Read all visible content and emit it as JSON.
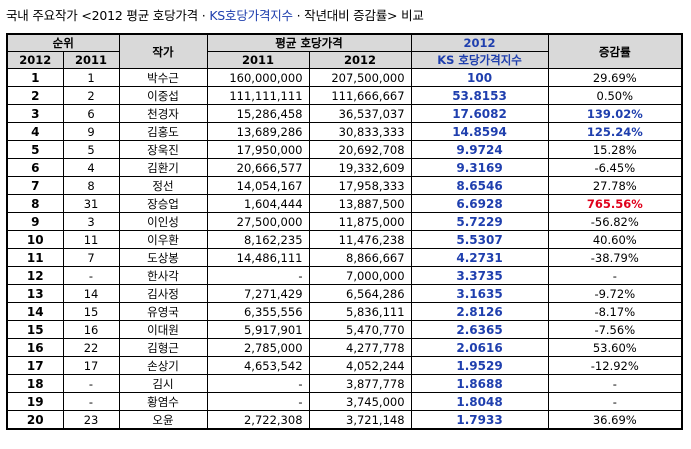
{
  "title": {
    "prefix": "국내 주요작가 <2012 평균 호당가격 · ",
    "accent": "KS호당가격지수",
    "suffix": " · 작년대비 증감률> 비교"
  },
  "headers": {
    "rank": "순위",
    "artist": "작가",
    "avg_price": "평균 호당가격",
    "ks_year": "2012",
    "ks_index": "KS 호당가격지수",
    "change": "증감률",
    "y2012": "2012",
    "y2011": "2011",
    "p2011": "2011",
    "p2012": "2012"
  },
  "rows": [
    {
      "r2012": "1",
      "r2011": "1",
      "artist": "박수근",
      "p2011": "160,000,000",
      "p2012": "207,500,000",
      "ks": "100",
      "chg": "29.69%",
      "style": ""
    },
    {
      "r2012": "2",
      "r2011": "2",
      "artist": "이중섭",
      "p2011": "111,111,111",
      "p2012": "111,666,667",
      "ks": "53.8153",
      "chg": "0.50%",
      "style": ""
    },
    {
      "r2012": "3",
      "r2011": "6",
      "artist": "천경자",
      "p2011": "15,286,458",
      "p2012": "36,537,037",
      "ks": "17.6082",
      "chg": "139.02%",
      "style": "bold"
    },
    {
      "r2012": "4",
      "r2011": "9",
      "artist": "김홍도",
      "p2011": "13,689,286",
      "p2012": "30,833,333",
      "ks": "14.8594",
      "chg": "125.24%",
      "style": "bold"
    },
    {
      "r2012": "5",
      "r2011": "5",
      "artist": "장욱진",
      "p2011": "17,950,000",
      "p2012": "20,692,708",
      "ks": "9.9724",
      "chg": "15.28%",
      "style": ""
    },
    {
      "r2012": "6",
      "r2011": "4",
      "artist": "김환기",
      "p2011": "20,666,577",
      "p2012": "19,332,609",
      "ks": "9.3169",
      "chg": "-6.45%",
      "style": ""
    },
    {
      "r2012": "7",
      "r2011": "8",
      "artist": "정선",
      "p2011": "14,054,167",
      "p2012": "17,958,333",
      "ks": "8.6546",
      "chg": "27.78%",
      "style": ""
    },
    {
      "r2012": "8",
      "r2011": "31",
      "artist": "장승업",
      "p2011": "1,604,444",
      "p2012": "13,887,500",
      "ks": "6.6928",
      "chg": "765.56%",
      "style": "red"
    },
    {
      "r2012": "9",
      "r2011": "3",
      "artist": "이인성",
      "p2011": "27,500,000",
      "p2012": "11,875,000",
      "ks": "5.7229",
      "chg": "-56.82%",
      "style": ""
    },
    {
      "r2012": "10",
      "r2011": "11",
      "artist": "이우환",
      "p2011": "8,162,235",
      "p2012": "11,476,238",
      "ks": "5.5307",
      "chg": "40.60%",
      "style": ""
    },
    {
      "r2012": "11",
      "r2011": "7",
      "artist": "도상봉",
      "p2011": "14,486,111",
      "p2012": "8,866,667",
      "ks": "4.2731",
      "chg": "-38.79%",
      "style": ""
    },
    {
      "r2012": "12",
      "r2011": "-",
      "artist": "한사각",
      "p2011": "-",
      "p2012": "7,000,000",
      "ks": "3.3735",
      "chg": "-",
      "style": ""
    },
    {
      "r2012": "13",
      "r2011": "14",
      "artist": "김사정",
      "p2011": "7,271,429",
      "p2012": "6,564,286",
      "ks": "3.1635",
      "chg": "-9.72%",
      "style": ""
    },
    {
      "r2012": "14",
      "r2011": "15",
      "artist": "유영국",
      "p2011": "6,355,556",
      "p2012": "5,836,111",
      "ks": "2.8126",
      "chg": "-8.17%",
      "style": ""
    },
    {
      "r2012": "15",
      "r2011": "16",
      "artist": "이대원",
      "p2011": "5,917,901",
      "p2012": "5,470,770",
      "ks": "2.6365",
      "chg": "-7.56%",
      "style": ""
    },
    {
      "r2012": "16",
      "r2011": "22",
      "artist": "김형근",
      "p2011": "2,785,000",
      "p2012": "4,277,778",
      "ks": "2.0616",
      "chg": "53.60%",
      "style": ""
    },
    {
      "r2012": "17",
      "r2011": "17",
      "artist": "손상기",
      "p2011": "4,653,542",
      "p2012": "4,052,244",
      "ks": "1.9529",
      "chg": "-12.92%",
      "style": ""
    },
    {
      "r2012": "18",
      "r2011": "-",
      "artist": "김시",
      "p2011": "-",
      "p2012": "3,877,778",
      "ks": "1.8688",
      "chg": "-",
      "style": ""
    },
    {
      "r2012": "19",
      "r2011": "-",
      "artist": "황염수",
      "p2011": "-",
      "p2012": "3,745,000",
      "ks": "1.8048",
      "chg": "-",
      "style": ""
    },
    {
      "r2012": "20",
      "r2011": "23",
      "artist": "오윤",
      "p2011": "2,722,308",
      "p2012": "3,721,148",
      "ks": "1.7933",
      "chg": "36.69%",
      "style": ""
    }
  ]
}
